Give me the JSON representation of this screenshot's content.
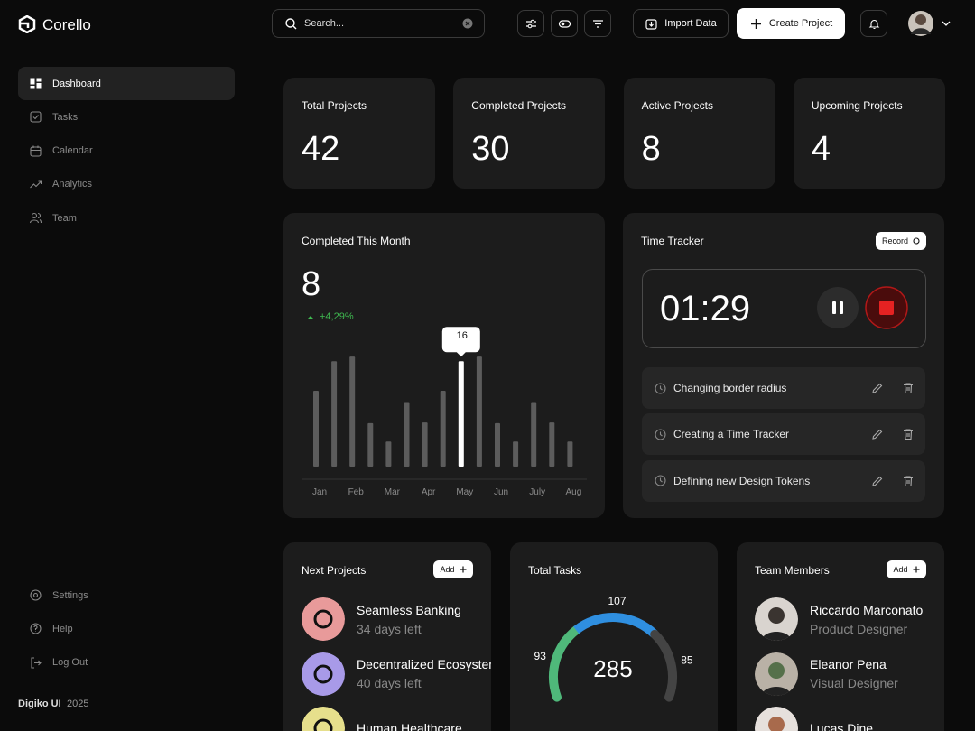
{
  "sidebar": {
    "brand": "Corello",
    "nav": [
      "Dashboard",
      "Tasks",
      "Calendar",
      "Analytics",
      "Team"
    ],
    "bottom_nav": [
      "Settings",
      "Help",
      "Log Out"
    ],
    "footer": {
      "name": "Digiko UI",
      "year": "2025"
    }
  },
  "topbar": {
    "search_placeholder": "Search...",
    "import_button": "Import Data",
    "create_button": "Create Project"
  },
  "stats": [
    {
      "label": "Total Projects",
      "value": 42
    },
    {
      "label": "Completed Projects",
      "value": 30
    },
    {
      "label": "Active Projects",
      "value": 8
    },
    {
      "label": "Upcoming Projects",
      "value": 4
    }
  ],
  "completed_month": {
    "title": "Completed This Month",
    "value": 8,
    "change": "+4,29%",
    "chart": {
      "type": "bar",
      "categories": [
        "Jan",
        null,
        "Feb",
        null,
        "Mar",
        null,
        "Apr",
        null,
        "May",
        null,
        "Jun",
        null,
        "July",
        null,
        "Aug"
      ],
      "values": [
        11.5,
        16,
        16.7,
        6.6,
        3.8,
        9.8,
        6.7,
        11.5,
        16,
        16.7,
        6.6,
        3.8,
        9.8,
        6.7,
        3.8
      ],
      "color": "#5c5c5c",
      "highlight_color": "#ffffff",
      "highlight_index": 8
    }
  },
  "time_tracker": {
    "title": "Time Tracker",
    "record_button": "Record",
    "time": "01:29",
    "tasks": [
      "Changing border radius",
      "Creating a Time Tracker",
      "Defining new Design Tokens"
    ]
  },
  "next_projects": {
    "title": "Next Projects",
    "add_button": "Add",
    "items": [
      {
        "name": "Seamless Banking",
        "due": "34 days left"
      },
      {
        "name": "Decentralized Ecosystem",
        "due": "40 days left"
      },
      {
        "name": "Human Healthcare"
      }
    ]
  },
  "total_tasks": {
    "title": "Total Tasks",
    "total": 285,
    "segments": [
      {
        "value": 93,
        "color": "#4fb87a"
      },
      {
        "value": 107,
        "color": "#2f8fe0"
      },
      {
        "value": 85,
        "color": "#444444"
      }
    ]
  },
  "team_members": {
    "title": "Team Members",
    "add_button": "Add",
    "members": [
      {
        "name": "Riccardo Marconato",
        "role": "Product Designer"
      },
      {
        "name": "Eleanor Pena",
        "role": "Visual Designer"
      },
      {
        "name": "Lucas Dine"
      }
    ]
  }
}
